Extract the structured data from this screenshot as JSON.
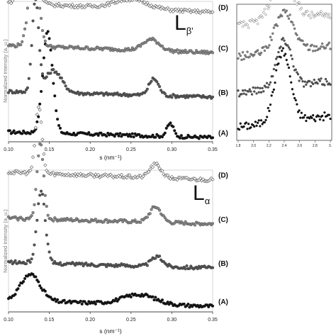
{
  "chart_data": [
    {
      "type": "scatter",
      "panel": "top",
      "title": "",
      "phase_label": {
        "main": "L",
        "sub": "β'"
      },
      "xlabel": "s (nm⁻¹)",
      "ylabel": "Normalized Intensity (a. u.)",
      "xlim": [
        0.1,
        0.35
      ],
      "xticks": [
        "0.10",
        "0.15",
        "0.20",
        "0.25",
        "0.30",
        "0.35"
      ],
      "grid": false,
      "series": [
        {
          "name": "(A)",
          "fill": "#111111",
          "offset": 0.0,
          "peaks": [
            {
              "s": 0.148,
              "h": 0.55,
              "w": 0.006
            },
            {
              "s": 0.298,
              "h": 0.07,
              "w": 0.004
            }
          ],
          "base": 0.03
        },
        {
          "name": "(B)",
          "fill": "#555555",
          "offset": 0.22,
          "peaks": [
            {
              "s": 0.133,
              "h": 0.5,
              "w": 0.004
            },
            {
              "s": 0.155,
              "h": 0.12,
              "w": 0.01
            },
            {
              "s": 0.278,
              "h": 0.09,
              "w": 0.006
            }
          ],
          "base": 0.03
        },
        {
          "name": "(C)",
          "fill": "#888888",
          "offset": 0.46,
          "peaks": [
            {
              "s": 0.131,
              "h": 0.45,
              "w": 0.006
            },
            {
              "s": 0.275,
              "h": 0.06,
              "w": 0.01
            }
          ],
          "base": 0.04
        },
        {
          "name": "(D)",
          "fill": "#ffffff",
          "offset": 0.68,
          "peaks": [
            {
              "s": 0.125,
              "h": 0.32,
              "w": 0.008
            },
            {
              "s": 0.25,
              "h": 0.05,
              "w": 0.02
            }
          ],
          "base": 0.05
        }
      ]
    },
    {
      "type": "scatter",
      "panel": "inset",
      "title": "",
      "xlim": [
        1.8,
        3.0
      ],
      "xticks": [
        "1.8",
        "2.0",
        "2.2",
        "2.4",
        "2.6",
        "2.8",
        "3."
      ],
      "grid": false,
      "series": [
        {
          "name": "(A)",
          "fill": "#111111",
          "offset": 0.0,
          "peak": 2.38,
          "h": 0.45,
          "w": 0.1
        },
        {
          "name": "(B)",
          "fill": "#555555",
          "offset": 0.22,
          "peak": 2.4,
          "h": 0.3,
          "w": 0.1
        },
        {
          "name": "(C)",
          "fill": "#888888",
          "offset": 0.45,
          "peak": 2.4,
          "h": 0.25,
          "w": 0.12
        },
        {
          "name": "(D)",
          "fill": "#ffffff",
          "offset": 0.65,
          "peak": 2.38,
          "h": 0.25,
          "w": 0.14
        }
      ]
    },
    {
      "type": "scatter",
      "panel": "bottom",
      "title": "",
      "phase_label": {
        "main": "L",
        "sub": "α"
      },
      "xlabel": "s (nm⁻¹)",
      "ylabel": "Normalized Intensity (a. u.)",
      "xlim": [
        0.1,
        0.35
      ],
      "xticks": [
        "0.10",
        "0.15",
        "0.20",
        "0.25",
        "0.30",
        "0.35"
      ],
      "grid": false,
      "series": [
        {
          "name": "(A)",
          "fill": "#111111",
          "offset": 0.0,
          "peaks": [
            {
              "s": 0.127,
              "h": 0.14,
              "w": 0.012
            },
            {
              "s": 0.26,
              "h": 0.05,
              "w": 0.02
            }
          ],
          "base": 0.03
        },
        {
          "name": "(B)",
          "fill": "#555555",
          "offset": 0.2,
          "peaks": [
            {
              "s": 0.14,
              "h": 0.38,
              "w": 0.005
            },
            {
              "s": 0.282,
              "h": 0.05,
              "w": 0.007
            }
          ],
          "base": 0.03
        },
        {
          "name": "(C)",
          "fill": "#888888",
          "offset": 0.43,
          "peaks": [
            {
              "s": 0.139,
              "h": 0.4,
              "w": 0.004
            },
            {
              "s": 0.28,
              "h": 0.08,
              "w": 0.007
            }
          ],
          "base": 0.03
        },
        {
          "name": "(D)",
          "fill": "#ffffff",
          "offset": 0.66,
          "peaks": [
            {
              "s": 0.137,
              "h": 0.35,
              "w": 0.004
            },
            {
              "s": 0.28,
              "h": 0.07,
              "w": 0.007
            }
          ],
          "base": 0.04
        }
      ]
    }
  ]
}
